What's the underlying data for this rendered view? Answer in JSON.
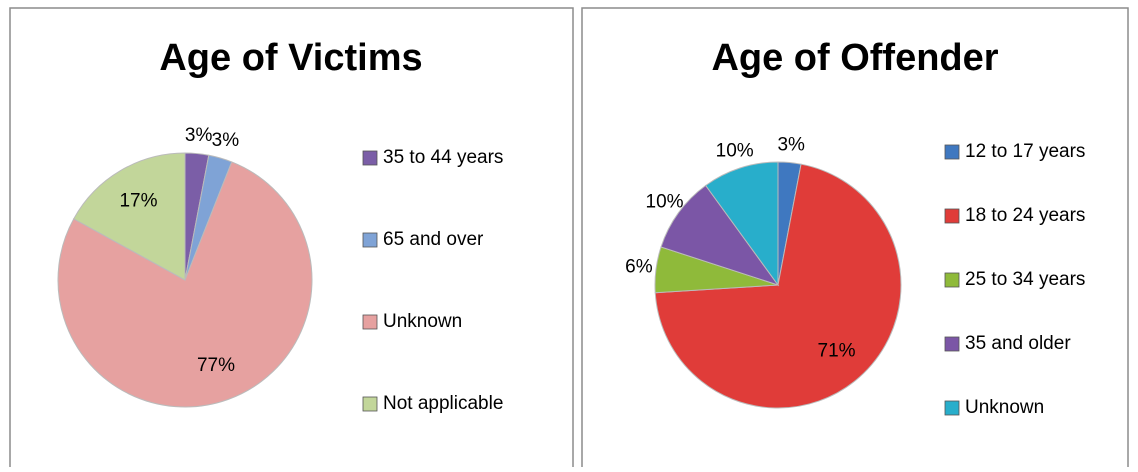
{
  "chart_data": [
    {
      "type": "pie",
      "title": "Age of Victims",
      "categories": [
        "35 to 44 years",
        "65 and over",
        "Unknown",
        "Not applicable"
      ],
      "values": [
        3,
        3,
        77,
        17
      ],
      "value_labels": [
        "3%",
        "3%",
        "77%",
        "17%"
      ],
      "colors": [
        "#7b5ea7",
        "#7fa3d6",
        "#e6a1a0",
        "#c2d69a"
      ]
    },
    {
      "type": "pie",
      "title": "Age of Offender",
      "categories": [
        "12 to 17 years",
        "18 to 24 years",
        "25 to 34 years",
        "35 and older",
        "Unknown"
      ],
      "values": [
        3,
        71,
        6,
        10,
        10
      ],
      "value_labels": [
        "3%",
        "71%",
        "6%",
        "10%",
        "10%"
      ],
      "colors": [
        "#3f78c0",
        "#e03c39",
        "#8fba3a",
        "#7b56a6",
        "#28aecb"
      ]
    }
  ]
}
